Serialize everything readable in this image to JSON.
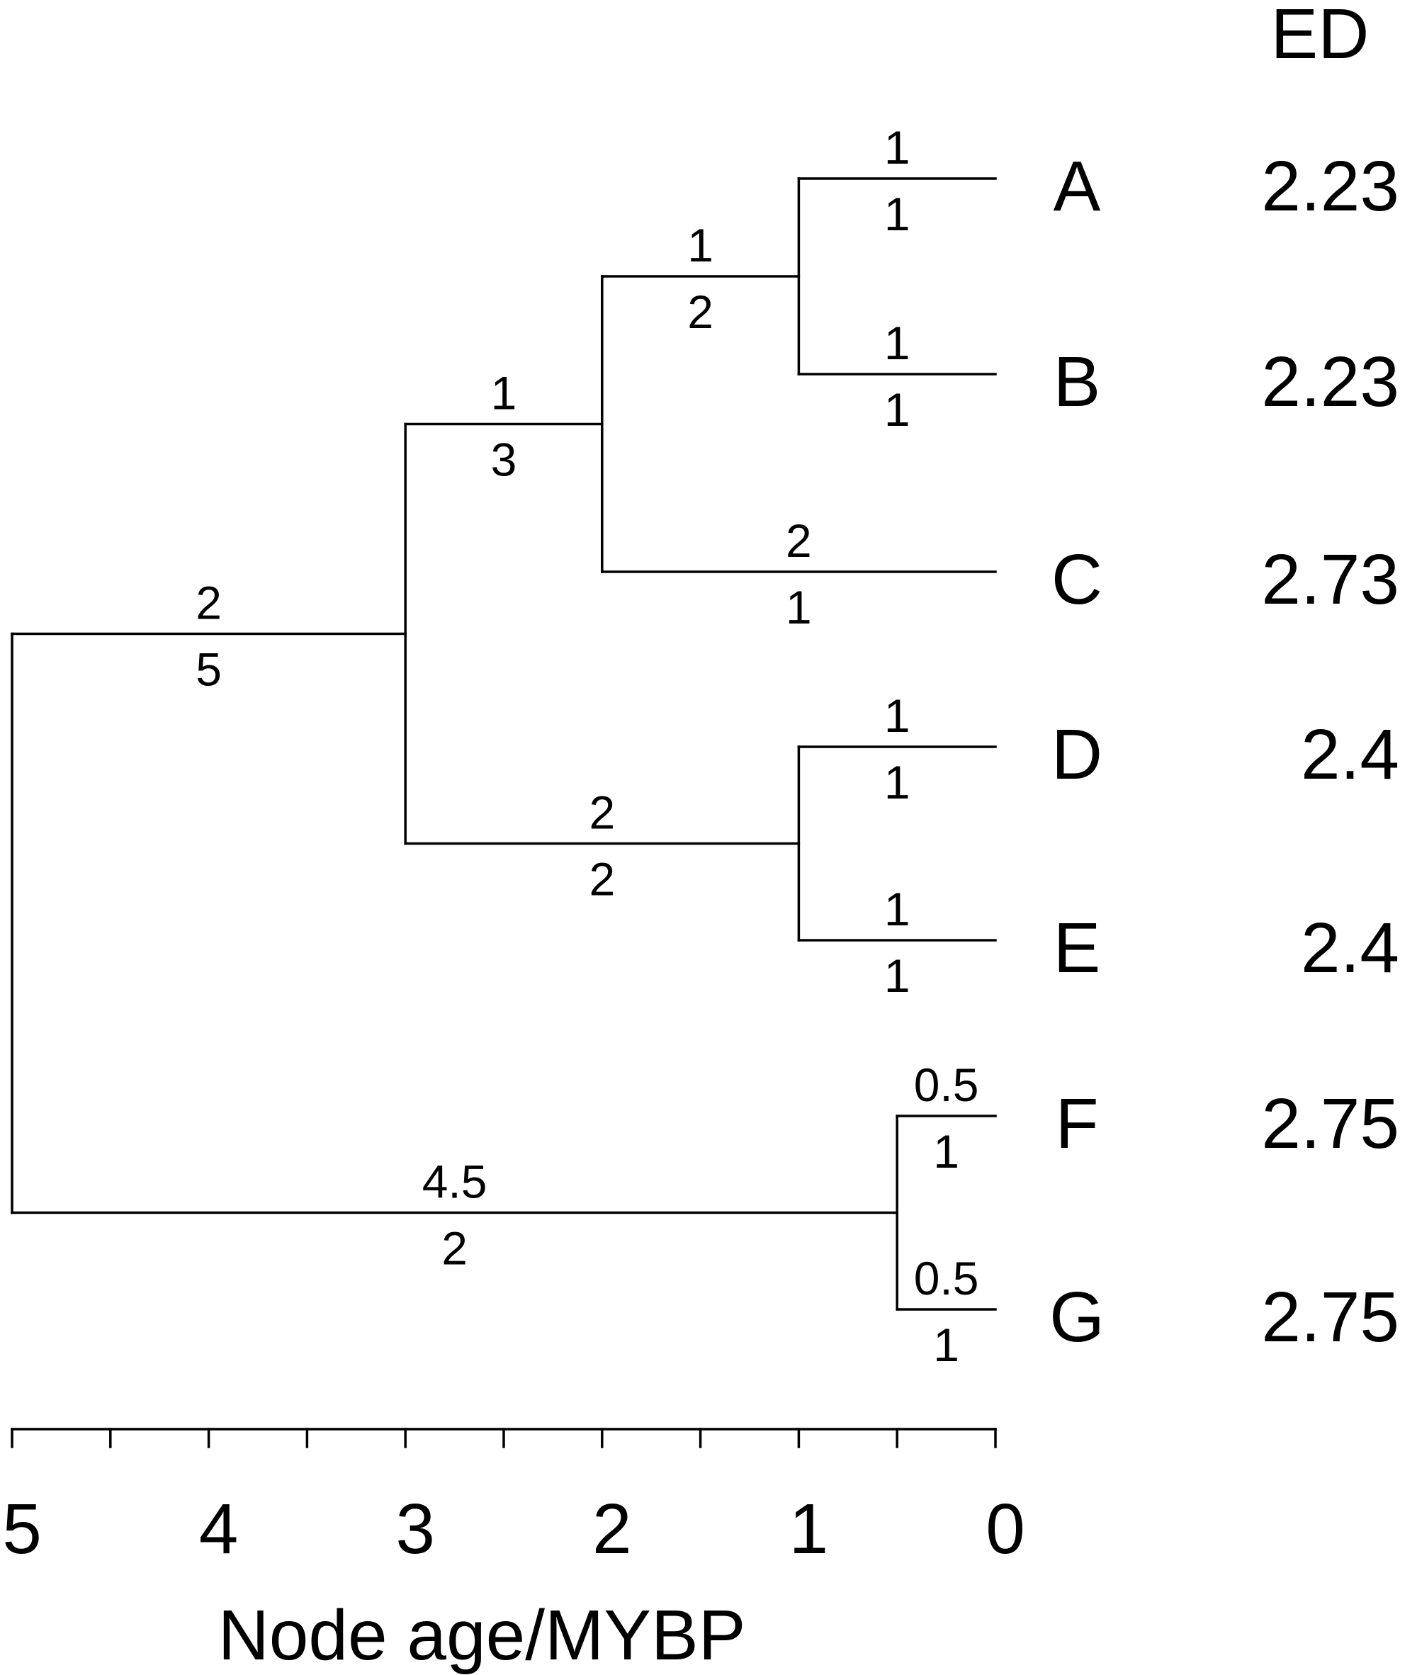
{
  "header": {
    "ed_label": "ED"
  },
  "tree": {
    "root_age": 5,
    "nodes": [
      {
        "id": "root",
        "age": 5
      },
      {
        "id": "ABCDE",
        "age": 3
      },
      {
        "id": "ABC",
        "age": 2
      },
      {
        "id": "AB",
        "age": 1
      },
      {
        "id": "DE",
        "age": 1
      },
      {
        "id": "FG",
        "age": 0.5
      }
    ],
    "tips": [
      {
        "id": "A",
        "label": "A",
        "ed": "2.23",
        "age": 0
      },
      {
        "id": "B",
        "label": "B",
        "ed": "2.23",
        "age": 0
      },
      {
        "id": "C",
        "label": "C",
        "ed": "2.73",
        "age": 0
      },
      {
        "id": "D",
        "label": "D",
        "ed": "2.4",
        "age": 0
      },
      {
        "id": "E",
        "label": "E",
        "ed": "2.4",
        "age": 0
      },
      {
        "id": "F",
        "label": "F",
        "ed": "2.75",
        "age": 0
      },
      {
        "id": "G",
        "label": "G",
        "ed": "2.75",
        "age": 0
      }
    ],
    "branches": [
      {
        "id": "root-ABCDE",
        "from": "root",
        "to": "ABCDE",
        "top": "2",
        "bottom": "5"
      },
      {
        "id": "root-FG",
        "from": "root",
        "to": "FG",
        "top": "4.5",
        "bottom": "2"
      },
      {
        "id": "ABCDE-ABC",
        "from": "ABCDE",
        "to": "ABC",
        "top": "1",
        "bottom": "3"
      },
      {
        "id": "ABCDE-DE",
        "from": "ABCDE",
        "to": "DE",
        "top": "2",
        "bottom": "2"
      },
      {
        "id": "ABC-AB",
        "from": "ABC",
        "to": "AB",
        "top": "1",
        "bottom": "2"
      },
      {
        "id": "ABC-C",
        "from": "ABC",
        "to": "C",
        "top": "2",
        "bottom": "1"
      },
      {
        "id": "AB-A",
        "from": "AB",
        "to": "A",
        "top": "1",
        "bottom": "1"
      },
      {
        "id": "AB-B",
        "from": "AB",
        "to": "B",
        "top": "1",
        "bottom": "1"
      },
      {
        "id": "DE-D",
        "from": "DE",
        "to": "D",
        "top": "1",
        "bottom": "1"
      },
      {
        "id": "DE-E",
        "from": "DE",
        "to": "E",
        "top": "1",
        "bottom": "1"
      },
      {
        "id": "FG-F",
        "from": "FG",
        "to": "F",
        "top": "0.5",
        "bottom": "1"
      },
      {
        "id": "FG-G",
        "from": "FG",
        "to": "G",
        "top": "0.5",
        "bottom": "1"
      }
    ]
  },
  "axis": {
    "title": "Node age/MYBP",
    "range": [
      5,
      0
    ],
    "minor_step": 0.5,
    "ticks": [
      {
        "value": 5,
        "label": "5"
      },
      {
        "value": 4,
        "label": "4"
      },
      {
        "value": 3,
        "label": "3"
      },
      {
        "value": 2,
        "label": "2"
      },
      {
        "value": 1,
        "label": "1"
      },
      {
        "value": 0,
        "label": "0"
      }
    ]
  }
}
